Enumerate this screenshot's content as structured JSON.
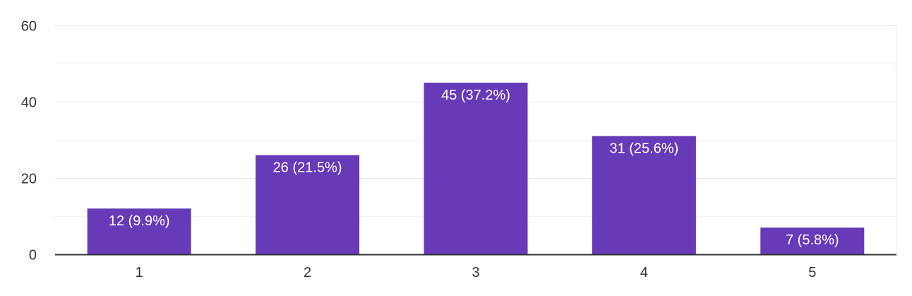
{
  "colors": {
    "bar": "#673ab7",
    "grid_major": "#e6e6e6",
    "grid_minor": "#f2f2f2",
    "axis": "#333333",
    "label_inside": "#ffffff"
  },
  "chart_data": {
    "type": "bar",
    "categories": [
      "1",
      "2",
      "3",
      "4",
      "5"
    ],
    "values": [
      12,
      26,
      45,
      31,
      7
    ],
    "data_labels": [
      "12 (9.9%)",
      "26 (21.5%)",
      "45 (37.2%)",
      "31 (25.6%)",
      "7 (5.8%)"
    ],
    "ylim": [
      0,
      60
    ],
    "y_ticks": [
      0,
      20,
      40,
      60
    ],
    "y_tick_labels": [
      "0",
      "20",
      "40",
      "60"
    ],
    "title": "",
    "xlabel": "",
    "ylabel": "",
    "grid": true,
    "legend": false
  }
}
